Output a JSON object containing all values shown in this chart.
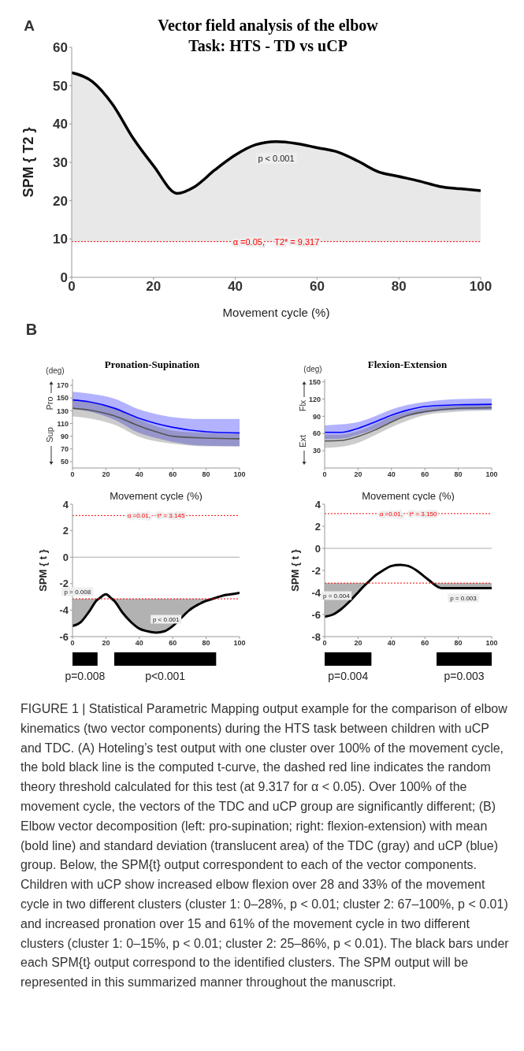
{
  "chart_data": [
    {
      "type": "area",
      "title": "Vector field analysis of the elbow",
      "subtitle": "Task: HTS - TD vs uCP",
      "xlabel": "Movement cycle (%)",
      "ylabel": "SPM { T2 }",
      "xlim": [
        0,
        100
      ],
      "xticks": [
        0,
        20,
        40,
        60,
        80,
        100
      ],
      "ylim": [
        0,
        60
      ],
      "yticks": [
        0,
        10,
        20,
        30,
        40,
        50,
        60
      ],
      "x": [
        0,
        5,
        10,
        15,
        20,
        25.8,
        30,
        35,
        40,
        45,
        50,
        55,
        60,
        65,
        70,
        75,
        80,
        85,
        90,
        95,
        100
      ],
      "series": [
        {
          "color": "#000000",
          "values": [
            53.4,
            51.1,
            45.1,
            36.3,
            29.1,
            21.9,
            23.6,
            28,
            31.9,
            34.6,
            35.4,
            34.9,
            33.8,
            32.7,
            30.3,
            27.5,
            26.3,
            25.1,
            23.7,
            23.1,
            22.6
          ]
        }
      ],
      "ref_lines": [
        {
          "axis": "y",
          "value": 9.317,
          "label": "α =0.05,    T2* = 9.317",
          "color": "#ff0000",
          "line_style": "dotted"
        }
      ],
      "annotations": [
        "A",
        "p < 0.001",
        "FIGURE 1 | Statistical Parametric Mapping output example for the comparison of elbow kinematics (two vector components) during the HTS task between children with uCP and TDC. (A) Hoteling’s test output with one cluster over 100% of the movement cycle, the bold black line is the computed t-curve, the dashed red line indicates the random theory threshold calculated for this test (at 9.317 for α < 0.05). Over 100% of the movement cycle, the vectors of the TDC and uCP group are significantly different; (B) Elbow vector decomposition (left: pro-supination; right: flexion-extension) with mean (bold line) and standard deviation (translucent area) of the TDC (gray) and uCP (blue) group. Below, the SPM{t} output correspondent to each of the vector components. Children with uCP show increased elbow flexion over 28 and 33% of the movement cycle in two different clusters (cluster 1: 0–28%, p < 0.01; cluster 2: 67–100%, p < 0.01) and increased pronation over 15 and 61% of the movement cycle in two different clusters (cluster 1: 0–15%, p < 0.01; cluster 2: 25–86%, p < 0.01). The black bars under each SPM{t} output correspond to the identified clusters. The SPM output will be represented in this summarized manner throughout the manuscript."
      ]
    },
    {
      "type": "line",
      "title": "Pronation-Supination",
      "xlabel": "Movement cycle (%)",
      "xlim": [
        0,
        100
      ],
      "xticks": [
        0,
        20,
        40,
        60,
        80,
        100
      ],
      "ylim": [
        40,
        180
      ],
      "yticks": [
        50,
        70,
        90,
        110,
        130,
        150,
        170
      ],
      "x": [
        0,
        10,
        25,
        40,
        50,
        60,
        80,
        100
      ],
      "series": [
        {
          "color": "#0000ff",
          "values": [
            147,
            144,
            134,
            118,
            110,
            104,
            97,
            95
          ],
          "lower": [
            133,
            129,
            116,
            95,
            87,
            81,
            75,
            74
          ],
          "upper": [
            160,
            157,
            149,
            132,
            125,
            120,
            117,
            117
          ]
        },
        {
          "color": "#555555",
          "values": [
            134,
            131,
            122,
            106,
            97,
            90,
            87,
            86
          ],
          "lower": [
            121,
            118,
            108,
            89,
            82,
            78,
            74,
            74
          ],
          "upper": [
            146,
            143,
            134,
            116,
            106,
            99,
            95,
            93
          ]
        }
      ],
      "annotations": [
        "B",
        "(deg)",
        "Pro",
        "Sup"
      ]
    },
    {
      "type": "line",
      "title": "Flexion-Extension",
      "xlabel": "Movement cycle (%)",
      "xlim": [
        0,
        100
      ],
      "xticks": [
        0,
        20,
        40,
        60,
        80,
        100
      ],
      "ylim": [
        0,
        155
      ],
      "yticks": [
        30,
        60,
        90,
        120,
        150
      ],
      "x": [
        0,
        10,
        20,
        30,
        40,
        50,
        60,
        80,
        100
      ],
      "series": [
        {
          "color": "#0000ff",
          "values": [
            62,
            62,
            69,
            80,
            92,
            101,
            107,
            110,
            111
          ],
          "lower": [
            50,
            51,
            58,
            68,
            81,
            90,
            96,
            101,
            102
          ],
          "upper": [
            74,
            76,
            80,
            90,
            102,
            110,
            115,
            120,
            121
          ]
        },
        {
          "color": "#555555",
          "values": [
            47,
            48,
            55,
            66,
            80,
            92,
            98,
            104,
            105
          ],
          "lower": [
            35,
            37,
            44,
            57,
            71,
            83,
            92,
            98,
            100
          ],
          "upper": [
            58,
            58,
            64,
            76,
            90,
            98,
            104,
            109,
            110
          ]
        }
      ],
      "annotations": [
        "(deg)",
        "Flx",
        "Ext"
      ]
    },
    {
      "type": "line",
      "ylabel": "SPM { t }",
      "xlim": [
        0,
        100
      ],
      "xticks": [
        0,
        20,
        40,
        60,
        80,
        100
      ],
      "ylim": [
        -6,
        4
      ],
      "yticks": [
        -6,
        -4,
        -2,
        0,
        2,
        4
      ],
      "x": [
        0,
        5,
        10,
        15,
        15.7,
        20,
        23.5,
        25,
        30,
        35,
        40,
        45,
        50,
        55,
        60,
        65,
        70,
        75,
        80,
        83.9,
        85,
        90,
        95,
        100
      ],
      "series": [
        {
          "color": "#000000",
          "values": [
            -5.2,
            -4.9,
            -4.1,
            -3.2,
            -3.145,
            -2.8,
            -3.145,
            -3.3,
            -4.2,
            -4.9,
            -5.4,
            -5.6,
            -5.7,
            -5.6,
            -5.2,
            -4.6,
            -4.0,
            -3.6,
            -3.3,
            -3.145,
            -3.1,
            -2.9,
            -2.8,
            -2.7
          ],
          "lower": [
            -5.2,
            -4.9,
            -4.1,
            -3.2,
            -3.145,
            null,
            -3.145,
            -3.3,
            -4.2,
            -4.9,
            -5.4,
            -5.6,
            -5.7,
            -5.6,
            -5.2,
            -4.6,
            -4.0,
            -3.6,
            -3.3,
            -3.145,
            null,
            null,
            null,
            null
          ],
          "upper": [
            -3.145,
            -3.145,
            -3.145,
            -3.145,
            -3.145,
            null,
            -3.145,
            -3.145,
            -3.145,
            -3.145,
            -3.145,
            -3.145,
            -3.145,
            -3.145,
            -3.145,
            -3.145,
            -3.145,
            -3.145,
            -3.145,
            -3.145,
            null,
            null,
            null,
            null
          ]
        }
      ],
      "ref_lines": [
        {
          "axis": "y",
          "value": 3.145,
          "label": "α =0.01,    t* = 3.145",
          "color": "#ff0000",
          "line_style": "dotted"
        },
        {
          "axis": "y",
          "value": -3.145,
          "color": "#ff0000",
          "line_style": "dotted"
        },
        {
          "axis": "y",
          "value": 0,
          "color": "#aaaaaa",
          "line_style": "solid"
        }
      ],
      "annotations": [
        "p = 0.008",
        "p < 0.001"
      ]
    },
    {
      "type": "line",
      "ylabel": "SPM { t }",
      "xlim": [
        0,
        100
      ],
      "xticks": [
        0,
        20,
        40,
        60,
        80,
        100
      ],
      "ylim": [
        -8,
        4
      ],
      "yticks": [
        -8,
        -6,
        -4,
        -2,
        0,
        2,
        4
      ],
      "x": [
        0,
        5,
        10,
        15,
        20,
        25,
        25.4,
        30,
        35,
        40,
        45,
        50,
        55,
        60,
        64.6,
        65,
        70,
        75,
        80,
        90,
        100
      ],
      "series": [
        {
          "color": "#000000",
          "values": [
            -6.2,
            -6.0,
            -5.5,
            -4.8,
            -4.0,
            -3.2,
            -3.15,
            -2.5,
            -2.0,
            -1.6,
            -1.5,
            -1.6,
            -2.0,
            -2.6,
            -3.15,
            -3.2,
            -3.6,
            -3.6,
            -3.6,
            -3.6,
            -3.6
          ],
          "lower": [
            -6.2,
            -6.0,
            -5.5,
            -4.8,
            -4.0,
            -3.2,
            -3.15,
            null,
            null,
            null,
            null,
            null,
            null,
            null,
            -3.15,
            -3.2,
            -3.6,
            -3.6,
            -3.6,
            -3.6,
            -3.6
          ],
          "upper": [
            -3.15,
            -3.15,
            -3.15,
            -3.15,
            -3.15,
            -3.15,
            -3.15,
            null,
            null,
            null,
            null,
            null,
            null,
            null,
            -3.15,
            -3.15,
            -3.15,
            -3.15,
            -3.15,
            -3.15,
            -3.15
          ]
        }
      ],
      "ref_lines": [
        {
          "axis": "y",
          "value": 3.15,
          "label": "α =0.01,    t* = 3.150",
          "color": "#ff0000",
          "line_style": "dotted"
        },
        {
          "axis": "y",
          "value": -3.15,
          "color": "#ff0000",
          "line_style": "dotted"
        },
        {
          "axis": "y",
          "value": 0,
          "color": "#aaaaaa",
          "line_style": "solid"
        }
      ],
      "annotations": [
        "p = 0.004",
        "p = 0.003"
      ]
    },
    {
      "type": "bar",
      "orientation": "horizontal",
      "tick_labels": false,
      "categories": [
        null
      ],
      "xlim": [
        0,
        100
      ],
      "series": [
        {
          "color": "#000000",
          "values": [
            15
          ],
          "base": [
            0
          ]
        },
        {
          "color": "#000000",
          "values": [
            61
          ],
          "base": [
            25
          ]
        }
      ],
      "annotations": [
        "p=0.008",
        "p<0.001"
      ]
    },
    {
      "type": "bar",
      "orientation": "horizontal",
      "tick_labels": false,
      "categories": [
        null
      ],
      "xlim": [
        0,
        100
      ],
      "series": [
        {
          "color": "#000000",
          "values": [
            28
          ],
          "base": [
            0
          ]
        },
        {
          "color": "#000000",
          "values": [
            33
          ],
          "base": [
            67
          ]
        }
      ],
      "annotations": [
        "p=0.004",
        "p=0.003"
      ]
    }
  ]
}
